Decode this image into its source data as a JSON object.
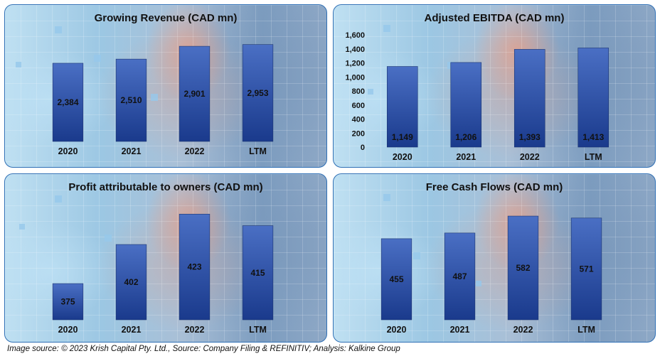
{
  "chart_data": [
    {
      "type": "bar",
      "title": "Growing Revenue (CAD mn)",
      "categories": [
        "2020",
        "2021",
        "2022",
        "LTM"
      ],
      "values": [
        2384,
        2510,
        2901,
        2953
      ],
      "value_labels": [
        "2,384",
        "2,510",
        "2,901",
        "2,953"
      ],
      "ylim": [
        0,
        3250
      ],
      "y_axis_visible": false,
      "grid": false,
      "legend": "none"
    },
    {
      "type": "bar",
      "title": "Adjusted EBITDA (CAD mn)",
      "categories": [
        "2020",
        "2021",
        "2022",
        "LTM"
      ],
      "values": [
        1149,
        1206,
        1393,
        1413
      ],
      "value_labels": [
        "1,149",
        "1,206",
        "1,393",
        "1,413"
      ],
      "ylim": [
        0,
        1600
      ],
      "y_ticks": [
        "0",
        "200",
        "400",
        "600",
        "800",
        "1,000",
        "1,200",
        "1,400",
        "1,600"
      ],
      "y_axis_visible": true,
      "grid": false,
      "legend": "none"
    },
    {
      "type": "bar",
      "title": "Profit attributable to owners (CAD mn)",
      "categories": [
        "2020",
        "2021",
        "2022",
        "LTM"
      ],
      "values": [
        375,
        402,
        423,
        415
      ],
      "value_labels": [
        "375",
        "402",
        "423",
        "415"
      ],
      "ylim": [
        350,
        430
      ],
      "y_axis_visible": false,
      "grid": false,
      "legend": "none"
    },
    {
      "type": "bar",
      "title": "Free Cash Flows (CAD mn)",
      "categories": [
        "2020",
        "2021",
        "2022",
        "LTM"
      ],
      "values": [
        455,
        487,
        582,
        571
      ],
      "value_labels": [
        "455",
        "487",
        "582",
        "571"
      ],
      "ylim": [
        0,
        650
      ],
      "y_axis_visible": false,
      "grid": false,
      "legend": "none"
    }
  ],
  "colors": {
    "bar_top": "#4a6fc4",
    "bar_bottom": "#1a3a8c",
    "panel_border": "#2e6fb5",
    "text": "#111111"
  },
  "footer": {
    "source_note": "Image source: © 2023 Krish Capital Pty. Ltd., Source: Company Filing & REFINITIV; Analysis: Kalkine Group"
  }
}
